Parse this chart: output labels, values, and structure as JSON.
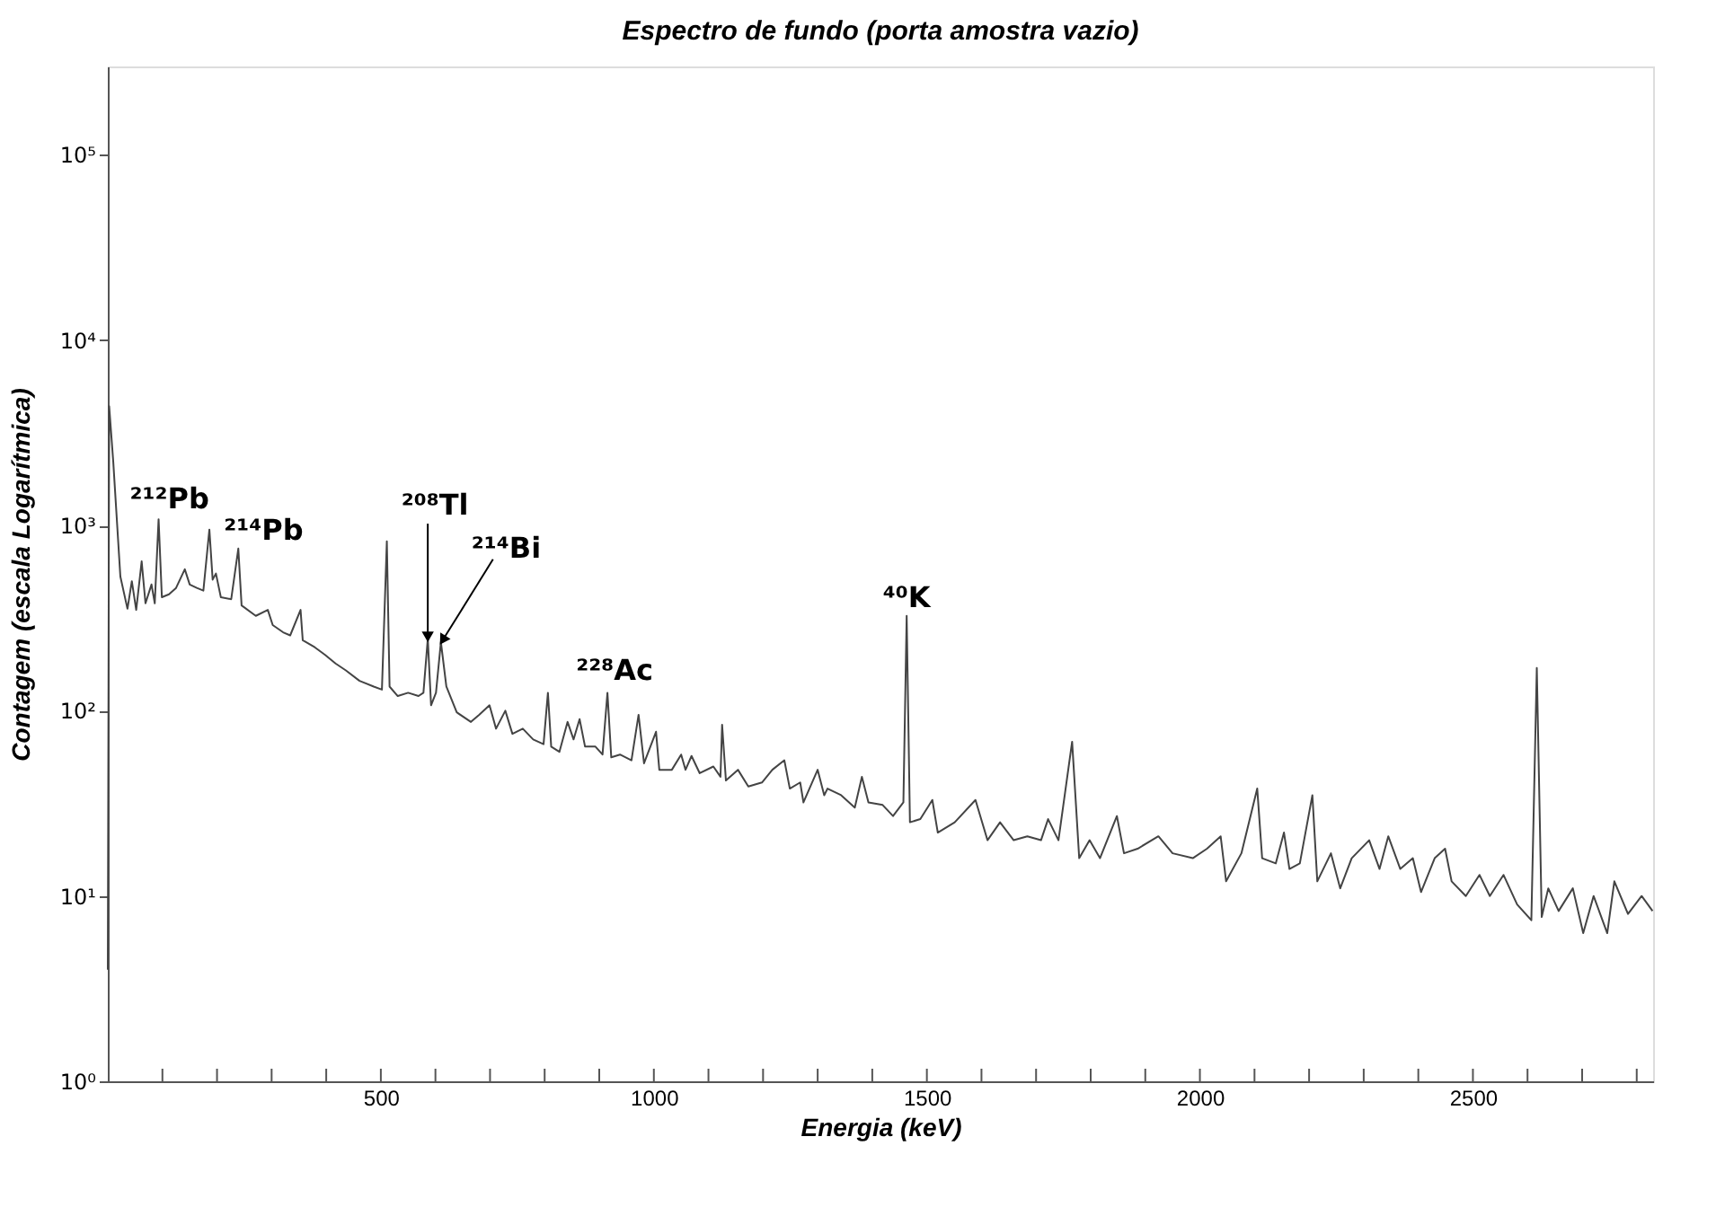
{
  "chart_data": {
    "type": "line",
    "title": "Espectro de fundo (porta amostra vazio)",
    "xlabel": "Energia (keV)",
    "ylabel": "Contagem (escala Logarítmica)",
    "series": [
      {
        "color": "#444444",
        "x": [
          0,
          2.5,
          10,
          23,
          36,
          44,
          52,
          62,
          69,
          80,
          86,
          93,
          99,
          112,
          125,
          141,
          150,
          163,
          175,
          186,
          192,
          198,
          207,
          226,
          239,
          245,
          271,
          293,
          302,
          321,
          334,
          353,
          357,
          379,
          398,
          417,
          436,
          461,
          487,
          502,
          511,
          516,
          531,
          550,
          569,
          578,
          586,
          592,
          601,
          610,
          620,
          639,
          665,
          680,
          699,
          711,
          728,
          741,
          760,
          779,
          798,
          806,
          812,
          827,
          842,
          853,
          864,
          874,
          893,
          906,
          915,
          922,
          938,
          959,
          972,
          982,
          1004,
          1010,
          1033,
          1050,
          1058,
          1069,
          1084,
          1109,
          1122,
          1125,
          1132,
          1154,
          1173,
          1198,
          1217,
          1239,
          1249,
          1268,
          1274,
          1300,
          1312,
          1318,
          1343,
          1368,
          1381,
          1393,
          1419,
          1438,
          1457,
          1463,
          1469,
          1488,
          1510,
          1520,
          1551,
          1589,
          1611,
          1634,
          1659,
          1684,
          1709,
          1722,
          1741,
          1766,
          1779,
          1798,
          1817,
          1848,
          1861,
          1886,
          1924,
          1950,
          1987,
          2013,
          2038,
          2048,
          2076,
          2105,
          2114,
          2139,
          2154,
          2164,
          2183,
          2206,
          2215,
          2240,
          2257,
          2278,
          2310,
          2329,
          2345,
          2367,
          2390,
          2405,
          2430,
          2449,
          2461,
          2487,
          2512,
          2531,
          2556,
          2581,
          2607,
          2617,
          2626,
          2638,
          2657,
          2683,
          2702,
          2721,
          2746,
          2759,
          2784,
          2809,
          2829
        ],
        "values": [
          4,
          4400,
          2200,
          530,
          355,
          500,
          350,
          640,
          380,
          480,
          380,
          1080,
          410,
          425,
          460,
          580,
          480,
          460,
          445,
          950,
          510,
          550,
          410,
          400,
          750,
          370,
          325,
          350,
          290,
          265,
          255,
          350,
          240,
          220,
          200,
          180,
          165,
          145,
          135,
          130,
          820,
          135,
          120,
          125,
          120,
          125,
          245,
          107,
          125,
          235,
          135,
          98,
          87,
          95,
          107,
          80,
          100,
          75,
          80,
          70,
          66,
          125,
          64,
          60,
          87,
          70,
          90,
          64,
          64,
          58,
          125,
          56,
          58,
          54,
          95,
          52,
          77,
          48,
          48,
          58,
          48,
          57,
          46,
          50,
          44,
          84,
          42,
          48,
          39,
          41,
          48,
          54,
          38,
          41,
          32,
          48,
          35,
          38,
          35,
          30,
          44,
          32,
          31,
          27,
          32,
          325,
          25,
          26,
          33,
          22,
          25,
          33,
          20,
          25,
          20,
          21,
          20,
          26,
          20,
          68,
          16,
          20,
          16,
          27,
          17,
          18,
          21,
          17,
          16,
          18,
          21,
          12,
          17,
          38,
          16,
          15,
          22,
          14,
          15,
          35,
          12,
          17,
          11,
          16,
          20,
          14,
          21,
          14,
          16,
          10.5,
          16,
          18,
          12,
          10,
          13,
          10,
          13,
          9,
          7.4,
          170,
          7.7,
          11,
          8.3,
          11,
          6.3,
          10,
          6.3,
          12,
          8,
          10,
          8.3
        ]
      }
    ],
    "xlim": [
      0,
      2830
    ],
    "xticks": [
      {
        "value": 100,
        "label": null
      },
      {
        "value": 200,
        "label": null
      },
      {
        "value": 300,
        "label": null
      },
      {
        "value": 400,
        "label": null
      },
      500,
      {
        "value": 600,
        "label": null
      },
      {
        "value": 700,
        "label": null
      },
      {
        "value": 800,
        "label": null
      },
      {
        "value": 900,
        "label": null
      },
      1000,
      {
        "value": 1100,
        "label": null
      },
      {
        "value": 1200,
        "label": null
      },
      {
        "value": 1300,
        "label": null
      },
      {
        "value": 1400,
        "label": null
      },
      1500,
      {
        "value": 1600,
        "label": null
      },
      {
        "value": 1700,
        "label": null
      },
      {
        "value": 1800,
        "label": null
      },
      {
        "value": 1900,
        "label": null
      },
      2000,
      {
        "value": 2100,
        "label": null
      },
      {
        "value": 2200,
        "label": null
      },
      {
        "value": 2300,
        "label": null
      },
      {
        "value": 2400,
        "label": null
      },
      2500,
      {
        "value": 2600,
        "label": null
      },
      {
        "value": 2700,
        "label": null
      },
      {
        "value": 2800,
        "label": null
      }
    ],
    "ylim": [
      1,
      300000
    ],
    "yticks": [
      {
        "value": 1,
        "label": "10⁰"
      },
      {
        "value": 10,
        "label": "10¹"
      },
      {
        "value": 100,
        "label": "10²"
      },
      {
        "value": 1000,
        "label": "10³"
      },
      {
        "value": 10000,
        "label": "10⁴"
      },
      {
        "value": 100000,
        "label": "10⁵"
      }
    ],
    "log": "y",
    "grid": false,
    "annotations": [
      {
        "text": "²¹²Pb",
        "x": 93,
        "y": 1080
      },
      {
        "text": "²¹⁴Pb",
        "x": 239,
        "y": 750
      },
      {
        "text": "²⁰⁸Tl",
        "x": 586,
        "y": 245
      },
      {
        "text": "²¹⁴Bi",
        "x": 610,
        "y": 235
      },
      {
        "text": "²²⁸Ac",
        "x": 915,
        "y": 125
      },
      {
        "text": "⁴⁰K",
        "x": 1463,
        "y": 325
      }
    ]
  }
}
